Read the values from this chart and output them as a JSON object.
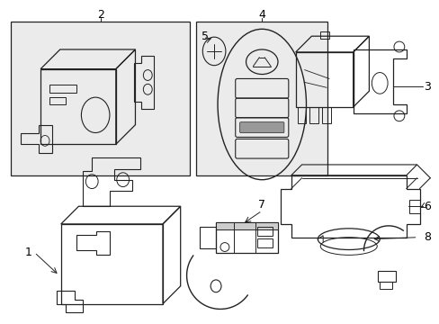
{
  "background_color": "#ffffff",
  "fig_width": 4.89,
  "fig_height": 3.6,
  "dpi": 100,
  "line_color": "#222222",
  "box_bg": "#ebebeb"
}
